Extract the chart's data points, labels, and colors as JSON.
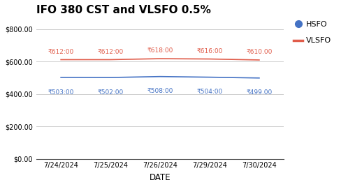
{
  "title": "IFO 380 CST and VLSFO 0.5%",
  "xlabel": "DATE",
  "dates": [
    "7/24/2024",
    "7/25/2024",
    "7/26/2024",
    "7/29/2024",
    "7/30/2024"
  ],
  "vlsfo_values": [
    612.0,
    612.0,
    618.0,
    616.0,
    610.0
  ],
  "hsfo_values": [
    503.0,
    502.0,
    508.0,
    504.0,
    499.0
  ],
  "vlsfo_labels": [
    "₹612:00",
    "₹612:00",
    "₹618:00",
    "₹616:00",
    "₹610.00"
  ],
  "hsfo_labels": [
    "₹503:00",
    "₹502:00",
    "₹508:00",
    "₹504:00",
    "₹499.00"
  ],
  "vlsfo_color": "#e05c4a",
  "hsfo_color": "#4472c4",
  "ylim": [
    0,
    850
  ],
  "yticks": [
    0,
    200,
    400,
    600,
    800
  ],
  "ytick_labels": [
    "$0.00",
    "$200.00",
    "$400.00",
    "$600.00",
    "$800.00"
  ],
  "background_color": "#ffffff",
  "grid_color": "#cccccc",
  "legend_hsfo_label": "HSFO",
  "legend_vlsfo_label": "VLSFO",
  "title_fontsize": 11,
  "annot_fontsize": 6.5
}
